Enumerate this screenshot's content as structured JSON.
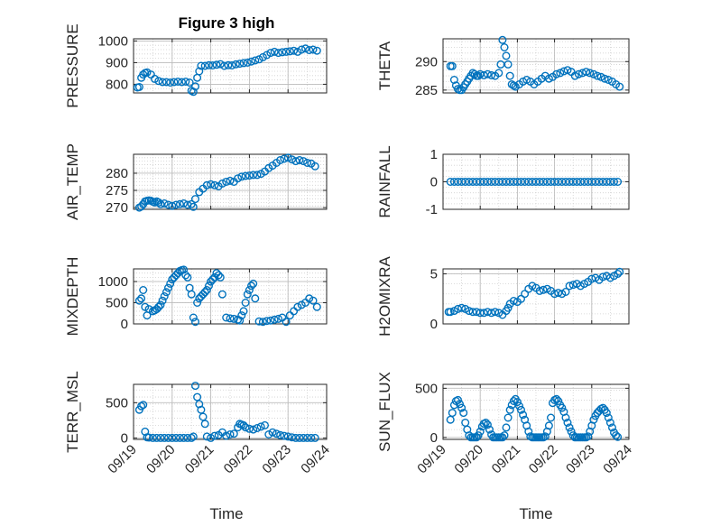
{
  "title": "Figure 3 high",
  "xlabel": "Time",
  "xticks": [
    "09/19",
    "09/20",
    "09/21",
    "09/22",
    "09/23",
    "09/24"
  ],
  "marker_color": "#0072BD",
  "chart_data": [
    {
      "type": "scatter",
      "ylabel": "PRESSURE",
      "xlim": [
        0,
        5
      ],
      "ylim": [
        760,
        1010
      ],
      "yticks": [
        800,
        900,
        1000
      ],
      "x": [
        0.1,
        0.15,
        0.2,
        0.25,
        0.3,
        0.35,
        0.45,
        0.55,
        0.65,
        0.75,
        0.85,
        0.95,
        1.05,
        1.15,
        1.25,
        1.35,
        1.45,
        1.5,
        1.55,
        1.6,
        1.65,
        1.7,
        1.75,
        1.85,
        1.95,
        2.05,
        2.15,
        2.25,
        2.35,
        2.45,
        2.55,
        2.65,
        2.75,
        2.85,
        2.95,
        3.05,
        3.15,
        3.25,
        3.35,
        3.45,
        3.55,
        3.65,
        3.75,
        3.85,
        3.95,
        4.05,
        4.15,
        4.25,
        4.35,
        4.45,
        4.55,
        4.65,
        4.75
      ],
      "y": [
        785,
        787,
        830,
        845,
        852,
        855,
        845,
        825,
        815,
        810,
        810,
        808,
        810,
        812,
        810,
        812,
        808,
        770,
        765,
        790,
        830,
        860,
        885,
        885,
        888,
        887,
        890,
        893,
        885,
        888,
        887,
        892,
        895,
        898,
        900,
        905,
        910,
        915,
        925,
        935,
        945,
        950,
        945,
        948,
        950,
        952,
        955,
        950,
        960,
        965,
        958,
        960,
        955
      ]
    },
    {
      "type": "scatter",
      "ylabel": "THETA",
      "xlim": [
        0,
        5
      ],
      "ylim": [
        284.5,
        294
      ],
      "yticks": [
        285,
        290
      ],
      "x": [
        0.2,
        0.25,
        0.3,
        0.35,
        0.4,
        0.45,
        0.5,
        0.55,
        0.6,
        0.65,
        0.7,
        0.75,
        0.8,
        0.85,
        0.9,
        0.95,
        1.0,
        1.1,
        1.2,
        1.3,
        1.4,
        1.5,
        1.55,
        1.6,
        1.65,
        1.7,
        1.75,
        1.8,
        1.85,
        1.9,
        1.95,
        2.05,
        2.15,
        2.25,
        2.35,
        2.45,
        2.55,
        2.65,
        2.75,
        2.85,
        2.95,
        3.05,
        3.15,
        3.25,
        3.35,
        3.45,
        3.55,
        3.65,
        3.75,
        3.85,
        3.95,
        4.05,
        4.15,
        4.25,
        4.35,
        4.45,
        4.55,
        4.65,
        4.75
      ],
      "y": [
        289.2,
        289.2,
        286.8,
        285.8,
        285.2,
        285.0,
        285.0,
        285.5,
        286.0,
        286.5,
        287.0,
        287.5,
        288.0,
        287.8,
        287.5,
        287.5,
        287.8,
        287.6,
        287.8,
        287.6,
        287.5,
        288.0,
        289.5,
        293.8,
        292.5,
        291.0,
        289.5,
        287.5,
        286.0,
        285.8,
        285.6,
        286.0,
        286.5,
        286.8,
        286.5,
        286.0,
        286.5,
        287.0,
        287.5,
        287.0,
        287.3,
        287.8,
        288.0,
        288.3,
        288.5,
        288.2,
        287.5,
        287.8,
        288.0,
        288.2,
        288.0,
        287.8,
        287.5,
        287.3,
        287.0,
        286.8,
        286.5,
        286.0,
        285.6
      ]
    },
    {
      "type": "scatter",
      "ylabel": "AIR_TEMP",
      "xlim": [
        0,
        5
      ],
      "ylim": [
        269.5,
        285.5
      ],
      "yticks": [
        270,
        275,
        280
      ],
      "x": [
        0.15,
        0.2,
        0.25,
        0.3,
        0.35,
        0.4,
        0.45,
        0.5,
        0.55,
        0.6,
        0.65,
        0.7,
        0.8,
        0.9,
        1.0,
        1.1,
        1.2,
        1.3,
        1.4,
        1.5,
        1.55,
        1.6,
        1.7,
        1.8,
        1.9,
        2.0,
        2.1,
        2.2,
        2.3,
        2.4,
        2.5,
        2.6,
        2.7,
        2.8,
        2.9,
        3.0,
        3.1,
        3.2,
        3.3,
        3.4,
        3.5,
        3.6,
        3.7,
        3.8,
        3.9,
        4.0,
        4.1,
        4.2,
        4.3,
        4.4,
        4.5,
        4.6,
        4.7
      ],
      "y": [
        270,
        270.3,
        271.0,
        271.8,
        272.0,
        272.1,
        272.0,
        271.7,
        271.5,
        271.8,
        271.5,
        271.0,
        271.2,
        270.8,
        270.5,
        270.8,
        271.0,
        271.2,
        270.8,
        271.0,
        270.2,
        272.5,
        274.5,
        275.5,
        276.5,
        276.8,
        276.5,
        276.2,
        277.0,
        277.5,
        277.8,
        277.5,
        278.5,
        279.0,
        279.2,
        279.3,
        279.5,
        279.5,
        279.8,
        280.5,
        281.5,
        282.2,
        283.0,
        283.8,
        284.2,
        284.5,
        284.0,
        283.5,
        283.8,
        283.5,
        283.0,
        282.8,
        282.0
      ]
    },
    {
      "type": "scatter",
      "ylabel": "RAINFALL",
      "xlim": [
        0,
        5
      ],
      "ylim": [
        -1,
        1
      ],
      "yticks": [
        -1,
        0,
        1
      ],
      "x": [
        0.2,
        0.3,
        0.4,
        0.5,
        0.6,
        0.7,
        0.8,
        0.9,
        1.0,
        1.1,
        1.2,
        1.3,
        1.4,
        1.5,
        1.6,
        1.7,
        1.8,
        1.9,
        2.0,
        2.1,
        2.2,
        2.3,
        2.4,
        2.5,
        2.6,
        2.7,
        2.8,
        2.9,
        3.0,
        3.1,
        3.2,
        3.3,
        3.4,
        3.5,
        3.6,
        3.7,
        3.8,
        3.9,
        4.0,
        4.1,
        4.2,
        4.3,
        4.4,
        4.5,
        4.6,
        4.7
      ],
      "y": [
        0,
        0,
        0,
        0,
        0,
        0,
        0,
        0,
        0,
        0,
        0,
        0,
        0,
        0,
        0,
        0,
        0,
        0,
        0,
        0,
        0,
        0,
        0,
        0,
        0,
        0,
        0,
        0,
        0,
        0,
        0,
        0,
        0,
        0,
        0,
        0,
        0,
        0,
        0,
        0,
        0,
        0,
        0,
        0,
        0,
        0
      ]
    },
    {
      "type": "scatter",
      "ylabel": "MIXDEPTH",
      "xlim": [
        0,
        5
      ],
      "ylim": [
        0,
        1300
      ],
      "yticks": [
        0,
        500,
        1000
      ],
      "x": [
        0.15,
        0.2,
        0.25,
        0.3,
        0.35,
        0.4,
        0.5,
        0.55,
        0.6,
        0.65,
        0.7,
        0.75,
        0.8,
        0.85,
        0.9,
        0.95,
        1.0,
        1.05,
        1.1,
        1.15,
        1.2,
        1.25,
        1.3,
        1.35,
        1.4,
        1.45,
        1.5,
        1.55,
        1.6,
        1.65,
        1.7,
        1.75,
        1.8,
        1.85,
        1.9,
        1.95,
        2.0,
        2.05,
        2.1,
        2.15,
        2.2,
        2.25,
        2.3,
        2.4,
        2.5,
        2.6,
        2.7,
        2.75,
        2.8,
        2.85,
        2.9,
        2.95,
        3.0,
        3.05,
        3.1,
        3.15,
        3.25,
        3.35,
        3.45,
        3.55,
        3.65,
        3.75,
        3.85,
        3.95,
        4.05,
        4.15,
        4.25,
        4.35,
        4.45,
        4.55,
        4.65,
        4.75
      ],
      "y": [
        550,
        600,
        800,
        400,
        200,
        350,
        300,
        320,
        350,
        400,
        450,
        550,
        650,
        750,
        850,
        950,
        1050,
        1100,
        1150,
        1200,
        1250,
        1270,
        1280,
        1150,
        1100,
        850,
        700,
        150,
        50,
        500,
        600,
        650,
        700,
        750,
        800,
        900,
        1000,
        1050,
        1100,
        1200,
        1150,
        1100,
        700,
        150,
        130,
        120,
        100,
        80,
        200,
        300,
        500,
        700,
        800,
        900,
        950,
        600,
        60,
        50,
        70,
        80,
        100,
        120,
        150,
        50,
        200,
        300,
        400,
        450,
        500,
        600,
        550,
        400
      ]
    },
    {
      "type": "scatter",
      "ylabel": "H2OMIXRA",
      "xlim": [
        0,
        5
      ],
      "ylim": [
        0,
        5.5
      ],
      "yticks": [
        0,
        5
      ],
      "x": [
        0.15,
        0.2,
        0.3,
        0.4,
        0.5,
        0.6,
        0.7,
        0.8,
        0.9,
        1.0,
        1.1,
        1.2,
        1.3,
        1.4,
        1.5,
        1.6,
        1.7,
        1.75,
        1.8,
        1.9,
        2.0,
        2.1,
        2.2,
        2.3,
        2.4,
        2.5,
        2.6,
        2.7,
        2.8,
        2.9,
        3.0,
        3.1,
        3.2,
        3.3,
        3.4,
        3.5,
        3.6,
        3.7,
        3.8,
        3.9,
        4.0,
        4.1,
        4.2,
        4.3,
        4.4,
        4.5,
        4.6,
        4.7,
        4.75
      ],
      "y": [
        1.2,
        1.2,
        1.3,
        1.5,
        1.6,
        1.5,
        1.3,
        1.2,
        1.2,
        1.1,
        1.1,
        1.2,
        1.1,
        1.2,
        1.1,
        0.9,
        1.3,
        1.6,
        2.0,
        2.3,
        2.2,
        2.5,
        3.0,
        3.5,
        3.8,
        3.6,
        3.3,
        3.4,
        3.5,
        3.3,
        3.0,
        3.1,
        3.0,
        3.2,
        3.8,
        3.9,
        4.0,
        3.8,
        4.0,
        4.2,
        4.5,
        4.6,
        4.4,
        4.7,
        4.8,
        4.6,
        4.8,
        5.0,
        5.2
      ]
    },
    {
      "type": "scatter",
      "ylabel": "TERR_MSL",
      "xlim": [
        0,
        5
      ],
      "ylim": [
        -20,
        760
      ],
      "yticks": [
        0,
        500
      ],
      "x": [
        0.15,
        0.2,
        0.25,
        0.3,
        0.35,
        0.4,
        0.5,
        0.6,
        0.7,
        0.8,
        0.9,
        1.0,
        1.1,
        1.2,
        1.3,
        1.4,
        1.5,
        1.55,
        1.6,
        1.65,
        1.7,
        1.75,
        1.8,
        1.85,
        1.9,
        2.0,
        2.1,
        2.2,
        2.3,
        2.4,
        2.5,
        2.6,
        2.7,
        2.75,
        2.8,
        2.85,
        2.9,
        3.0,
        3.1,
        3.2,
        3.3,
        3.4,
        3.5,
        3.6,
        3.7,
        3.8,
        3.9,
        4.0,
        4.1,
        4.2,
        4.3,
        4.4,
        4.5,
        4.6,
        4.7
      ],
      "y": [
        400,
        450,
        470,
        90,
        10,
        5,
        0,
        0,
        0,
        0,
        0,
        0,
        0,
        0,
        0,
        0,
        0,
        20,
        740,
        580,
        480,
        400,
        300,
        200,
        20,
        0,
        30,
        40,
        80,
        30,
        50,
        60,
        150,
        200,
        190,
        180,
        150,
        130,
        120,
        140,
        160,
        180,
        50,
        80,
        60,
        40,
        30,
        20,
        10,
        0,
        0,
        0,
        0,
        0,
        0
      ]
    },
    {
      "type": "scatter",
      "ylabel": "SUN_FLUX",
      "xlim": [
        0,
        5
      ],
      "ylim": [
        -20,
        540
      ],
      "yticks": [
        0,
        500
      ],
      "x": [
        0.2,
        0.25,
        0.3,
        0.35,
        0.4,
        0.45,
        0.5,
        0.55,
        0.6,
        0.65,
        0.7,
        0.75,
        0.8,
        0.85,
        0.9,
        0.95,
        1.0,
        1.05,
        1.1,
        1.15,
        1.2,
        1.25,
        1.3,
        1.35,
        1.4,
        1.45,
        1.5,
        1.55,
        1.6,
        1.65,
        1.7,
        1.75,
        1.8,
        1.85,
        1.9,
        1.95,
        2.0,
        2.05,
        2.1,
        2.15,
        2.2,
        2.25,
        2.3,
        2.35,
        2.4,
        2.45,
        2.5,
        2.55,
        2.6,
        2.65,
        2.7,
        2.75,
        2.8,
        2.85,
        2.9,
        2.95,
        3.0,
        3.05,
        3.1,
        3.15,
        3.2,
        3.25,
        3.3,
        3.35,
        3.4,
        3.45,
        3.5,
        3.55,
        3.6,
        3.65,
        3.7,
        3.75,
        3.8,
        3.85,
        3.9,
        3.95,
        4.0,
        4.05,
        4.1,
        4.15,
        4.2,
        4.25,
        4.3,
        4.35,
        4.4,
        4.45,
        4.5,
        4.55,
        4.6,
        4.65,
        4.7
      ],
      "y": [
        180,
        250,
        330,
        370,
        380,
        340,
        300,
        250,
        150,
        80,
        20,
        0,
        0,
        0,
        0,
        20,
        60,
        110,
        140,
        150,
        130,
        80,
        30,
        0,
        0,
        0,
        0,
        0,
        0,
        20,
        100,
        200,
        280,
        330,
        370,
        390,
        360,
        320,
        280,
        230,
        180,
        120,
        60,
        10,
        0,
        0,
        0,
        0,
        0,
        0,
        0,
        10,
        60,
        120,
        200,
        350,
        380,
        390,
        370,
        330,
        300,
        260,
        200,
        150,
        100,
        60,
        20,
        0,
        0,
        0,
        0,
        0,
        0,
        0,
        10,
        60,
        120,
        180,
        220,
        250,
        270,
        290,
        300,
        280,
        250,
        200,
        150,
        100,
        50,
        20,
        5
      ]
    }
  ]
}
